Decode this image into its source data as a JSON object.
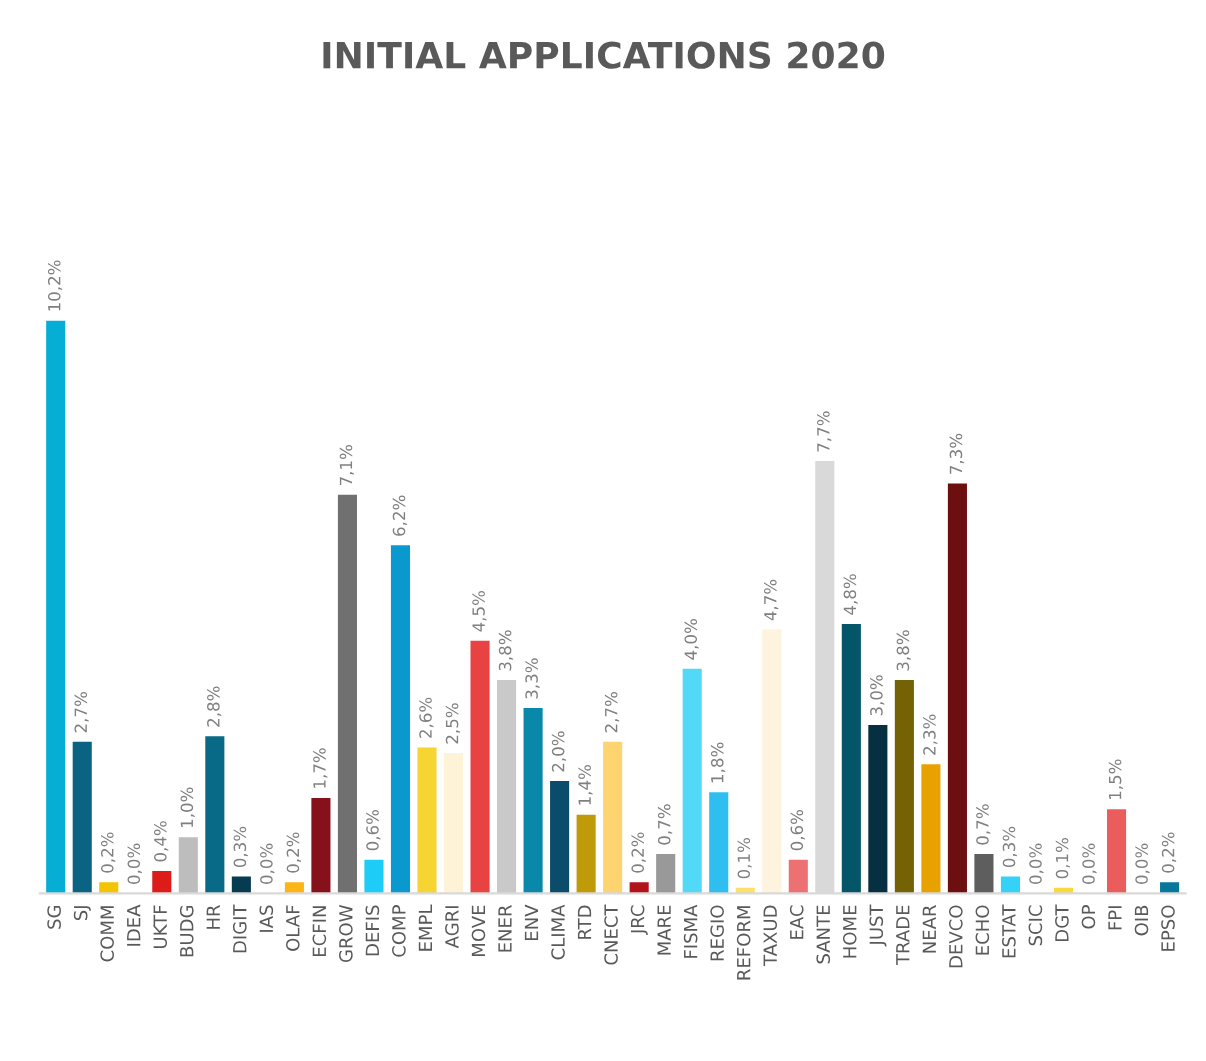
{
  "chart_data": {
    "type": "bar",
    "title": "INITIAL APPLICATIONS 2020",
    "categories": [
      "SG",
      "SJ",
      "COMM",
      "IDEA",
      "UKTF",
      "BUDG",
      "HR",
      "DIGIT",
      "IAS",
      "OLAF",
      "ECFIN",
      "GROW",
      "DEFIS",
      "COMP",
      "EMPL",
      "AGRI",
      "MOVE",
      "ENER",
      "ENV",
      "CLIMA",
      "RTD",
      "CNECT",
      "JRC",
      "MARE",
      "FISMA",
      "REGIO",
      "REFORM",
      "TAXUD",
      "EAC",
      "SANTE",
      "HOME",
      "JUST",
      "TRADE",
      "NEAR",
      "DEVCO",
      "ECHO",
      "ESTAT",
      "SCIC",
      "DGT",
      "OP",
      "FPI",
      "OIB",
      "EPSO"
    ],
    "values": [
      10.2,
      2.7,
      0.2,
      0.0,
      0.4,
      1.0,
      2.8,
      0.3,
      0.0,
      0.2,
      1.7,
      7.1,
      0.6,
      6.2,
      2.6,
      2.5,
      4.5,
      3.8,
      3.3,
      2.0,
      1.4,
      2.7,
      0.2,
      0.7,
      4.0,
      1.8,
      0.1,
      4.7,
      0.6,
      7.7,
      4.8,
      3.0,
      3.8,
      2.3,
      7.3,
      0.7,
      0.3,
      0.0,
      0.1,
      0.0,
      1.5,
      0.0,
      0.2
    ],
    "value_labels": [
      "10,2%",
      "2,7%",
      "0,2%",
      "0,0%",
      "0,4%",
      "1,0%",
      "2,8%",
      "0,3%",
      "0,0%",
      "0,2%",
      "1,7%",
      "7,1%",
      "0,6%",
      "6,2%",
      "2,6%",
      "2,5%",
      "4,5%",
      "3,8%",
      "3,3%",
      "2,0%",
      "1,4%",
      "2,7%",
      "0,2%",
      "0,7%",
      "4,0%",
      "1,8%",
      "0,1%",
      "4,7%",
      "0,6%",
      "7,7%",
      "4,8%",
      "3,0%",
      "3,8%",
      "2,3%",
      "7,3%",
      "0,7%",
      "0,3%",
      "0,0%",
      "0,1%",
      "0,0%",
      "1,5%",
      "0,0%",
      "0,2%"
    ],
    "colors": [
      "#06aed5",
      "#0b6384",
      "#f2c500",
      "#ffffff",
      "#dd1c1a",
      "#bdbdbd",
      "#086a87",
      "#073b52",
      "#7a6a00",
      "#fdb515",
      "#87111a",
      "#707070",
      "#1dcdf7",
      "#0a99cf",
      "#f6d432",
      "#fef2d7",
      "#e84243",
      "#c9c9c9",
      "#0a88aa",
      "#0a4c6a",
      "#bf9b0a",
      "#fed470",
      "#b2131a",
      "#999999",
      "#52d9f7",
      "#2ebff0",
      "#fde068",
      "#fef3dd",
      "#ed7172",
      "#d9d9d9",
      "#045567",
      "#062f42",
      "#756205",
      "#e8a200",
      "#6d0e10",
      "#5e5e5e",
      "#34d2f7",
      "#a5e5f5",
      "#fad93a",
      "#fdeccd",
      "#eb5c5c",
      "#cccccc",
      "#08789a"
    ],
    "tick_labels": "x",
    "grid": false,
    "legend": false
  }
}
